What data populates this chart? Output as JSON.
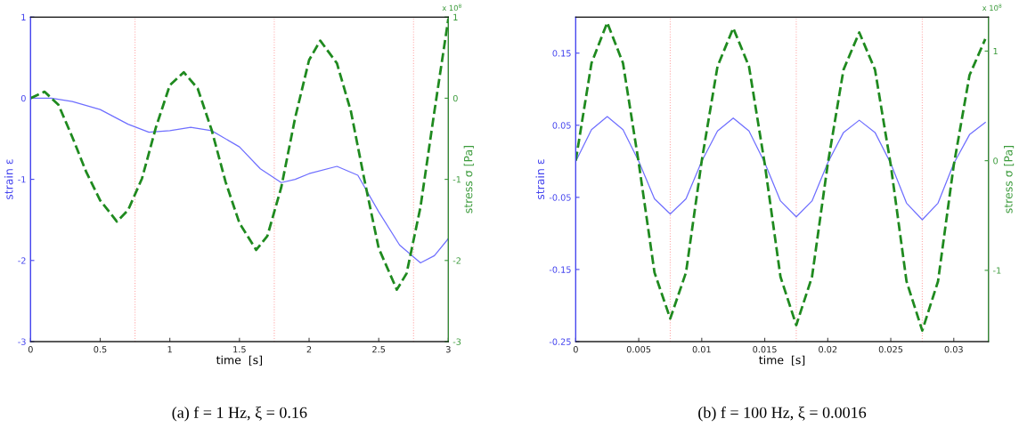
{
  "chart_data": [
    {
      "type": "line",
      "title": "(a) f = 1 Hz, ξ = 0.16",
      "xlabel": "time  [s]",
      "ylabel": "strain ε",
      "y2label": "stress σ [Pa]",
      "annotations": [
        "x 10$^{8}$"
      ],
      "xlim": [
        0,
        3
      ],
      "xticks": [
        0,
        0.5,
        1,
        1.5,
        2,
        2.5,
        3
      ],
      "ylim": [
        -3,
        1
      ],
      "yticks": [
        -3,
        -2,
        -1,
        0,
        1
      ],
      "y2lim": [
        -3,
        1
      ],
      "y2ticks": [
        -3,
        -2,
        -1,
        0,
        1
      ],
      "grid": false,
      "legend": false,
      "ref_lines": [
        {
          "axis": "x",
          "value": 0.75,
          "color": "#ffaaaa",
          "line_style": "dotted"
        },
        {
          "axis": "x",
          "value": 1.75,
          "color": "#ffaaaa",
          "line_style": "dotted"
        },
        {
          "axis": "x",
          "value": 2.75,
          "color": "#ffaaaa",
          "line_style": "dotted"
        }
      ],
      "series": [
        {
          "color": "#6f6fff",
          "line_style": "solid",
          "x": [
            0,
            0.15,
            0.3,
            0.5,
            0.7,
            0.85,
            1.0,
            1.15,
            1.3,
            1.5,
            1.65,
            1.8,
            1.9,
            2.0,
            2.2,
            2.35,
            2.5,
            2.65,
            2.8,
            2.9,
            3.0
          ],
          "values": [
            0,
            0,
            -0.04,
            -0.14,
            -0.32,
            -0.42,
            -0.4,
            -0.36,
            -0.4,
            -0.6,
            -0.87,
            -1.04,
            -1.0,
            -0.93,
            -0.84,
            -0.95,
            -1.4,
            -1.81,
            -2.03,
            -1.94,
            -1.73
          ]
        },
        {
          "color": "#1f8a1f",
          "line_style": "dashed",
          "axis": "y2",
          "x": [
            0,
            0.1,
            0.2,
            0.3,
            0.4,
            0.5,
            0.62,
            0.7,
            0.8,
            0.9,
            1.0,
            1.1,
            1.2,
            1.3,
            1.4,
            1.5,
            1.62,
            1.7,
            1.8,
            1.9,
            2.0,
            2.08,
            2.2,
            2.3,
            2.4,
            2.5,
            2.63,
            2.7,
            2.8,
            2.9,
            3.0
          ],
          "values": [
            0,
            0.08,
            -0.08,
            -0.48,
            -0.91,
            -1.26,
            -1.52,
            -1.38,
            -0.99,
            -0.36,
            0.16,
            0.32,
            0.12,
            -0.39,
            -1.03,
            -1.54,
            -1.87,
            -1.7,
            -1.1,
            -0.24,
            0.47,
            0.71,
            0.43,
            -0.16,
            -1.03,
            -1.85,
            -2.36,
            -2.16,
            -1.34,
            -0.16,
            0.98
          ]
        }
      ]
    },
    {
      "type": "line",
      "title": "(b) f = 100 Hz, ξ = 0.0016",
      "xlabel": "time  [s]",
      "ylabel": "strain ε",
      "y2label": "stress σ [Pa]",
      "annotations": [
        "x 10$^{8}$"
      ],
      "xlim": [
        0,
        0.03275
      ],
      "xticks": [
        0,
        0.005,
        0.01,
        0.015,
        0.02,
        0.025,
        0.03
      ],
      "ylim": [
        -0.25,
        0.2
      ],
      "yticks": [
        -0.25,
        -0.15,
        -0.05,
        0.05,
        0.15
      ],
      "y2lim": [
        -1.65,
        1.31
      ],
      "y2ticks": [
        -1,
        0,
        1
      ],
      "grid": false,
      "legend": false,
      "ref_lines": [
        {
          "axis": "x",
          "value": 0.0075,
          "color": "#ffaaaa",
          "line_style": "dotted"
        },
        {
          "axis": "x",
          "value": 0.0175,
          "color": "#ffaaaa",
          "line_style": "dotted"
        },
        {
          "axis": "x",
          "value": 0.0275,
          "color": "#ffaaaa",
          "line_style": "dotted"
        }
      ],
      "series": [
        {
          "color": "#6f6fff",
          "line_style": "solid",
          "x": [
            0,
            0.00125,
            0.0025,
            0.00375,
            0.005,
            0.00625,
            0.0075,
            0.00875,
            0.01,
            0.01125,
            0.0125,
            0.01375,
            0.015,
            0.01625,
            0.0175,
            0.01875,
            0.02,
            0.02125,
            0.0225,
            0.02375,
            0.025,
            0.02625,
            0.0275,
            0.02875,
            0.03,
            0.03125,
            0.0325
          ],
          "values": [
            0,
            0.044,
            0.062,
            0.044,
            0,
            -0.052,
            -0.073,
            -0.052,
            0,
            0.042,
            0.06,
            0.042,
            -0.002,
            -0.055,
            -0.077,
            -0.055,
            -0.002,
            0.04,
            0.057,
            0.04,
            -0.003,
            -0.058,
            -0.081,
            -0.058,
            -0.003,
            0.037,
            0.054
          ]
        },
        {
          "color": "#1f8a1f",
          "line_style": "dashed",
          "axis": "y2",
          "x": [
            0,
            0.00125,
            0.0025,
            0.00375,
            0.005,
            0.00625,
            0.0075,
            0.00875,
            0.01,
            0.01125,
            0.0125,
            0.01375,
            0.015,
            0.01625,
            0.0175,
            0.01875,
            0.02,
            0.02125,
            0.0225,
            0.02375,
            0.025,
            0.02625,
            0.0275,
            0.02875,
            0.03,
            0.03125,
            0.0325
          ],
          "values": [
            0,
            0.89,
            1.26,
            0.89,
            -0.02,
            -1.02,
            -1.44,
            -1.02,
            0,
            0.86,
            1.21,
            0.86,
            -0.03,
            -1.06,
            -1.5,
            -1.06,
            -0.03,
            0.83,
            1.17,
            0.83,
            -0.04,
            -1.1,
            -1.55,
            -1.1,
            -0.04,
            0.78,
            1.11
          ]
        }
      ]
    }
  ]
}
